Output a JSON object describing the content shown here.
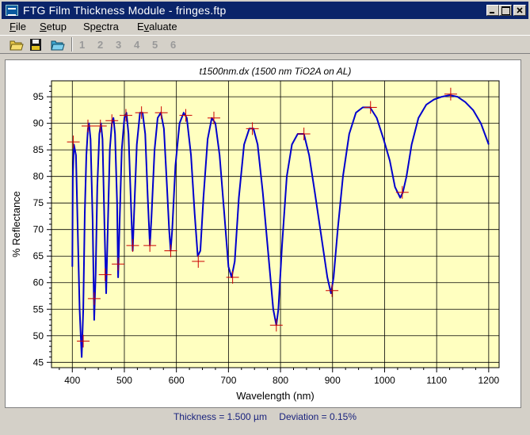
{
  "window": {
    "title": "FTG Film Thickness Module - fringes.ftp",
    "buttons": {
      "minimize": "_",
      "maximize": "□",
      "close": "×"
    }
  },
  "menu": [
    {
      "label": "File",
      "accel": "F",
      "rest": "ile"
    },
    {
      "label": "Setup",
      "accel": "S",
      "rest": "etup"
    },
    {
      "label": "Spectra",
      "pre": "Sp",
      "accel": "e",
      "rest": "ctra"
    },
    {
      "label": "Evaluate",
      "pre": "E",
      "accel": "v",
      "rest": "aluate"
    }
  ],
  "toolbar": {
    "icons": [
      "open-folder-icon",
      "save-disk-icon",
      "open-spectrum-icon"
    ],
    "spectrum_slots": [
      "1",
      "2",
      "3",
      "4",
      "5",
      "6"
    ]
  },
  "chart_data": {
    "type": "line",
    "title": "t1500nm.dx (1500 nm TiO2A on AL)",
    "xlabel": "Wavelength (nm)",
    "ylabel": "% Reflectance",
    "xlim": [
      360,
      1220
    ],
    "ylim": [
      44,
      98
    ],
    "xticks": [
      400,
      500,
      600,
      700,
      800,
      900,
      1000,
      1100,
      1200
    ],
    "yticks": [
      45,
      50,
      55,
      60,
      65,
      70,
      75,
      80,
      85,
      90,
      95
    ],
    "grid": true,
    "background": "#ffffc0",
    "line_color": "#0000cc",
    "marker_color": "#cc0000",
    "series": [
      {
        "values": [
          [
            400,
            63
          ],
          [
            401,
            80
          ],
          [
            403,
            86
          ],
          [
            407,
            84
          ],
          [
            410,
            72
          ],
          [
            414,
            55
          ],
          [
            418,
            46
          ],
          [
            421,
            55
          ],
          [
            424,
            73
          ],
          [
            427,
            84
          ],
          [
            430,
            89
          ],
          [
            432,
            90
          ],
          [
            435,
            87
          ],
          [
            439,
            72
          ],
          [
            442,
            53
          ],
          [
            445,
            62
          ],
          [
            448,
            78
          ],
          [
            452,
            88
          ],
          [
            455,
            90
          ],
          [
            458,
            87
          ],
          [
            462,
            70
          ],
          [
            465,
            58
          ],
          [
            468,
            70
          ],
          [
            472,
            85
          ],
          [
            476,
            90
          ],
          [
            479,
            91
          ],
          [
            482,
            88
          ],
          [
            486,
            75
          ],
          [
            488,
            61
          ],
          [
            491,
            72
          ],
          [
            495,
            85
          ],
          [
            500,
            91
          ],
          [
            504,
            92
          ],
          [
            508,
            88
          ],
          [
            513,
            74
          ],
          [
            516,
            66
          ],
          [
            519,
            74
          ],
          [
            524,
            86
          ],
          [
            530,
            92
          ],
          [
            535,
            92
          ],
          [
            540,
            88
          ],
          [
            545,
            76
          ],
          [
            549,
            67
          ],
          [
            552,
            72
          ],
          [
            558,
            85
          ],
          [
            564,
            91
          ],
          [
            570,
            92
          ],
          [
            576,
            89
          ],
          [
            582,
            78
          ],
          [
            586,
            70
          ],
          [
            589,
            66
          ],
          [
            592,
            70
          ],
          [
            598,
            82
          ],
          [
            606,
            90
          ],
          [
            614,
            92
          ],
          [
            620,
            91
          ],
          [
            628,
            84
          ],
          [
            635,
            73
          ],
          [
            641,
            65
          ],
          [
            646,
            66
          ],
          [
            652,
            76
          ],
          [
            660,
            87
          ],
          [
            668,
            91
          ],
          [
            675,
            90
          ],
          [
            683,
            84
          ],
          [
            692,
            73
          ],
          [
            700,
            63
          ],
          [
            706,
            61
          ],
          [
            712,
            64
          ],
          [
            720,
            76
          ],
          [
            730,
            86
          ],
          [
            740,
            89
          ],
          [
            748,
            89
          ],
          [
            756,
            86
          ],
          [
            766,
            77
          ],
          [
            776,
            66
          ],
          [
            786,
            55
          ],
          [
            792,
            52
          ],
          [
            796,
            55
          ],
          [
            803,
            67
          ],
          [
            812,
            80
          ],
          [
            822,
            86
          ],
          [
            833,
            88
          ],
          [
            845,
            88
          ],
          [
            855,
            84
          ],
          [
            866,
            77
          ],
          [
            878,
            69
          ],
          [
            890,
            61
          ],
          [
            897,
            58
          ],
          [
            902,
            61
          ],
          [
            910,
            70
          ],
          [
            920,
            80
          ],
          [
            932,
            88
          ],
          [
            945,
            92
          ],
          [
            958,
            93
          ],
          [
            972,
            93
          ],
          [
            985,
            91
          ],
          [
            998,
            87
          ],
          [
            1010,
            83
          ],
          [
            1020,
            78
          ],
          [
            1030,
            76
          ],
          [
            1035,
            77
          ],
          [
            1042,
            80
          ],
          [
            1052,
            86
          ],
          [
            1065,
            91
          ],
          [
            1080,
            93.5
          ],
          [
            1095,
            94.5
          ],
          [
            1110,
            95
          ],
          [
            1125,
            95.3
          ],
          [
            1140,
            95
          ],
          [
            1155,
            94
          ],
          [
            1170,
            92.5
          ],
          [
            1185,
            90
          ],
          [
            1200,
            86
          ]
        ]
      }
    ],
    "markers": [
      [
        402,
        86.5
      ],
      [
        421,
        49
      ],
      [
        430,
        89.5
      ],
      [
        442,
        57
      ],
      [
        454,
        89.5
      ],
      [
        463,
        61.5
      ],
      [
        476,
        90.5
      ],
      [
        488,
        63.5
      ],
      [
        503,
        91.5
      ],
      [
        516,
        67
      ],
      [
        533,
        92
      ],
      [
        549,
        67
      ],
      [
        571,
        92
      ],
      [
        589,
        66
      ],
      [
        618,
        91.5
      ],
      [
        642,
        64
      ],
      [
        672,
        91
      ],
      [
        708,
        61
      ],
      [
        746,
        89
      ],
      [
        792,
        52
      ],
      [
        845,
        88
      ],
      [
        899,
        58.5
      ],
      [
        973,
        93
      ],
      [
        1034,
        77
      ],
      [
        1127,
        95.5
      ]
    ]
  },
  "status": {
    "thickness": "Thickness = 1.500 µm",
    "deviation": "Deviation = 0.15%"
  }
}
